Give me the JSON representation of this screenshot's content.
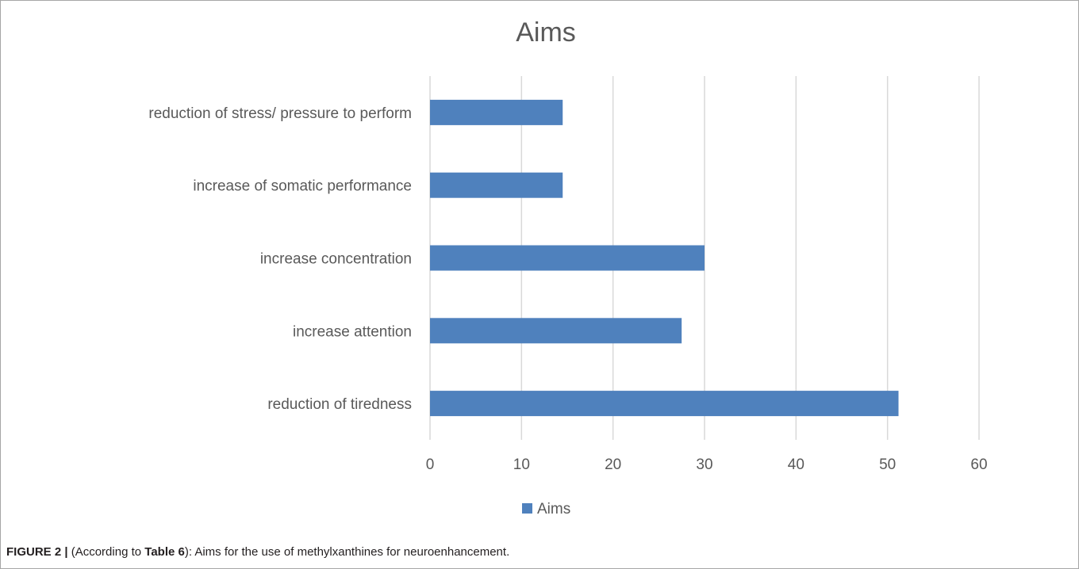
{
  "chart_data": {
    "type": "bar",
    "orientation": "horizontal",
    "title": "Aims",
    "categories": [
      "reduction of stress/ pressure to perform",
      "increase of somatic performance",
      "increase concentration",
      "increase attention",
      "reduction of tiredness"
    ],
    "series": [
      {
        "name": "Aims",
        "values": [
          14.5,
          14.5,
          30,
          27.5,
          51.2
        ]
      }
    ],
    "xlim": [
      0,
      60
    ],
    "xticks": [
      "0",
      "10",
      "20",
      "30",
      "40",
      "50",
      "60"
    ],
    "grid": true,
    "legend_position": "bottom",
    "colors": {
      "bar": "#4f81bd",
      "grid": "#d9d9d9",
      "text": "#595959"
    }
  },
  "caption": {
    "label": "FIGURE 2 |",
    "pre": " (According to ",
    "ref": "Table 6",
    "post": "): Aims for the use of methylxanthines for neuroenhancement."
  }
}
